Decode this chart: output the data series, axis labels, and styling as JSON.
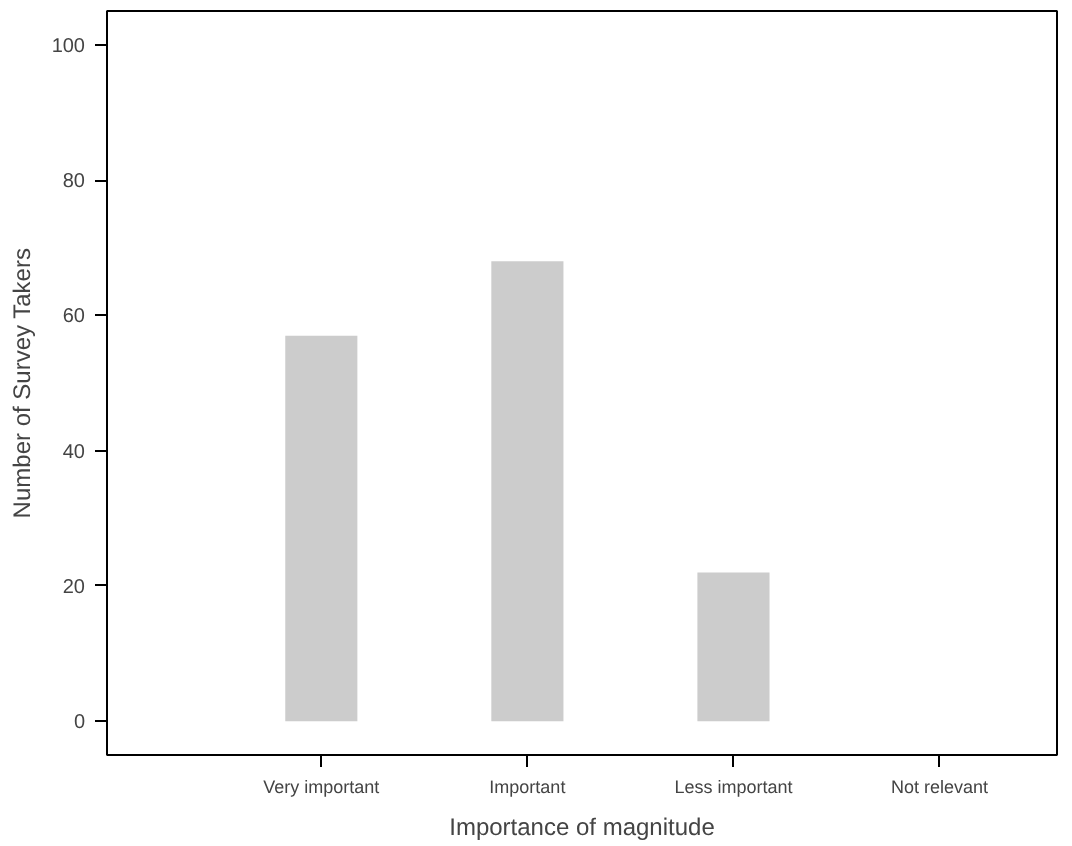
{
  "chart_data": {
    "type": "bar",
    "xlabel": "Importance of magnitude",
    "ylabel": "Number of Survey Takers",
    "categories": [
      "Very important",
      "Important",
      "Less important",
      "Not relevant"
    ],
    "values": [
      57,
      68,
      22,
      0
    ],
    "color": "#cccccc",
    "ylim": [
      -5,
      105
    ],
    "yticks": [
      0,
      20,
      40,
      60,
      80,
      100
    ],
    "grid": false
  }
}
